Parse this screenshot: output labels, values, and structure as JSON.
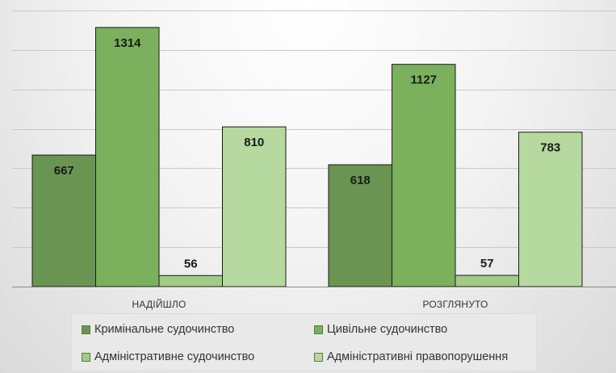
{
  "chart_data": {
    "type": "bar",
    "categories": [
      "НАДІЙШЛО",
      "РОЗГЛЯНУТО"
    ],
    "series": [
      {
        "name": "Кримінальне судочинство",
        "values": [
          667,
          618
        ],
        "color": "#6a9452"
      },
      {
        "name": "Цивільне судочинство",
        "values": [
          1314,
          1127
        ],
        "color": "#7bb05c"
      },
      {
        "name": "Адміністративне судочинство",
        "values": [
          56,
          57
        ],
        "color": "#a2cb88"
      },
      {
        "name": "Адміністративні правопорушення",
        "values": [
          810,
          783
        ],
        "color": "#b5d99e"
      }
    ],
    "ylim": [
      0,
      1400
    ],
    "grid": true,
    "legend_position": "bottom"
  }
}
